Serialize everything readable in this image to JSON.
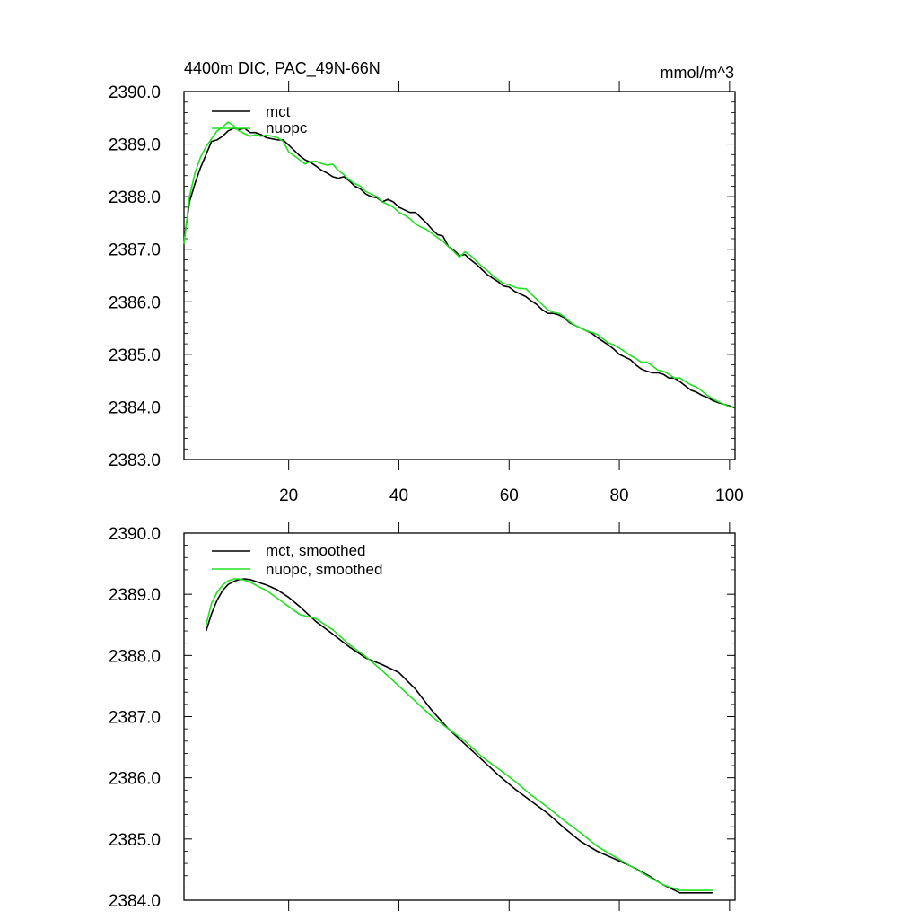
{
  "chart_data": [
    {
      "type": "line",
      "title": "4400m DIC, PAC_49N-66N",
      "units": "mmol/m^3",
      "xlim": [
        1,
        101
      ],
      "ylim": [
        2383.0,
        2390.0
      ],
      "xticks": [
        20,
        40,
        60,
        80,
        100
      ],
      "yticks": [
        "2383.0",
        "2384.0",
        "2385.0",
        "2386.0",
        "2387.0",
        "2388.0",
        "2389.0",
        "2390.0"
      ],
      "legend_position": "top-left",
      "grid": false,
      "series": [
        {
          "name": "mct",
          "color": "#000000",
          "x": [
            1,
            2,
            3,
            4,
            5,
            6,
            7,
            8,
            9,
            10,
            11,
            12,
            13,
            14,
            15,
            16,
            17,
            18,
            19,
            20,
            21,
            22,
            23,
            24,
            25,
            26,
            27,
            28,
            29,
            30,
            31,
            32,
            33,
            34,
            35,
            36,
            37,
            38,
            39,
            40,
            41,
            42,
            43,
            44,
            45,
            46,
            47,
            48,
            49,
            50,
            51,
            52,
            53,
            54,
            55,
            56,
            57,
            58,
            59,
            60,
            61,
            62,
            63,
            64,
            65,
            66,
            67,
            68,
            69,
            70,
            71,
            72,
            73,
            74,
            75,
            76,
            77,
            78,
            79,
            80,
            81,
            82,
            83,
            84,
            85,
            86,
            87,
            88,
            89,
            90,
            91,
            92,
            93,
            94,
            95,
            96,
            97,
            98,
            99,
            100,
            101
          ],
          "values": [
            2387.15,
            2387.9,
            2388.25,
            2388.55,
            2388.8,
            2389.05,
            2389.08,
            2389.15,
            2389.25,
            2389.3,
            2389.28,
            2389.3,
            2389.22,
            2389.22,
            2389.18,
            2389.12,
            2389.1,
            2389.08,
            2389.08,
            2388.98,
            2388.88,
            2388.78,
            2388.7,
            2388.65,
            2388.58,
            2388.5,
            2388.45,
            2388.38,
            2388.35,
            2388.38,
            2388.3,
            2388.2,
            2388.15,
            2388.05,
            2388.0,
            2387.98,
            2387.9,
            2387.95,
            2387.9,
            2387.8,
            2387.75,
            2387.7,
            2387.7,
            2387.6,
            2387.5,
            2387.38,
            2387.28,
            2387.25,
            2387.05,
            2386.98,
            2386.88,
            2386.9,
            2386.8,
            2386.72,
            2386.62,
            2386.52,
            2386.45,
            2386.38,
            2386.3,
            2386.28,
            2386.2,
            2386.15,
            2386.1,
            2386.02,
            2385.95,
            2385.85,
            2385.78,
            2385.78,
            2385.75,
            2385.7,
            2385.6,
            2385.55,
            2385.5,
            2385.45,
            2385.4,
            2385.32,
            2385.25,
            2385.18,
            2385.1,
            2385.0,
            2384.95,
            2384.9,
            2384.8,
            2384.72,
            2384.68,
            2384.65,
            2384.65,
            2384.62,
            2384.55,
            2384.55,
            2384.48,
            2384.4,
            2384.32,
            2384.28,
            2384.22,
            2384.18,
            2384.12,
            2384.08,
            2384.05,
            2384.02,
            2383.98
          ]
        },
        {
          "name": "nuopc",
          "color": "#22e022",
          "x": [
            1,
            2,
            3,
            4,
            5,
            6,
            7,
            8,
            9,
            10,
            11,
            12,
            13,
            14,
            15,
            16,
            17,
            18,
            19,
            20,
            21,
            22,
            23,
            24,
            25,
            26,
            27,
            28,
            29,
            30,
            31,
            32,
            33,
            34,
            35,
            36,
            37,
            38,
            39,
            40,
            41,
            42,
            43,
            44,
            45,
            46,
            47,
            48,
            49,
            50,
            51,
            52,
            53,
            54,
            55,
            56,
            57,
            58,
            59,
            60,
            61,
            62,
            63,
            64,
            65,
            66,
            67,
            68,
            69,
            70,
            71,
            72,
            73,
            74,
            75,
            76,
            77,
            78,
            79,
            80,
            81,
            82,
            83,
            84,
            85,
            86,
            87,
            88,
            89,
            90,
            91,
            92,
            93,
            94,
            95,
            96,
            97,
            98,
            99,
            100,
            101
          ],
          "values": [
            2387.1,
            2388.0,
            2388.45,
            2388.75,
            2388.95,
            2389.1,
            2389.25,
            2389.32,
            2389.42,
            2389.35,
            2389.25,
            2389.2,
            2389.15,
            2389.18,
            2389.15,
            2389.17,
            2389.15,
            2389.12,
            2389.05,
            2388.85,
            2388.78,
            2388.7,
            2388.62,
            2388.67,
            2388.67,
            2388.63,
            2388.6,
            2388.62,
            2388.5,
            2388.42,
            2388.32,
            2388.25,
            2388.2,
            2388.1,
            2388.05,
            2388.0,
            2387.9,
            2387.85,
            2387.8,
            2387.7,
            2387.65,
            2387.58,
            2387.48,
            2387.42,
            2387.38,
            2387.3,
            2387.22,
            2387.15,
            2387.05,
            2386.95,
            2386.85,
            2386.95,
            2386.88,
            2386.78,
            2386.68,
            2386.6,
            2386.5,
            2386.42,
            2386.35,
            2386.32,
            2386.28,
            2386.25,
            2386.25,
            2386.15,
            2386.05,
            2385.95,
            2385.85,
            2385.8,
            2385.78,
            2385.72,
            2385.62,
            2385.55,
            2385.5,
            2385.45,
            2385.42,
            2385.38,
            2385.3,
            2385.22,
            2385.18,
            2385.12,
            2385.05,
            2384.98,
            2384.92,
            2384.85,
            2384.85,
            2384.78,
            2384.7,
            2384.68,
            2384.62,
            2384.55,
            2384.55,
            2384.48,
            2384.42,
            2384.38,
            2384.3,
            2384.22,
            2384.15,
            2384.1,
            2384.05,
            2384.0,
            2384.0
          ]
        }
      ]
    },
    {
      "type": "line",
      "xlim": [
        1,
        101
      ],
      "ylim": [
        2384.0,
        2390.0
      ],
      "yticks": [
        "2384.0",
        "2385.0",
        "2386.0",
        "2387.0",
        "2388.0",
        "2389.0",
        "2390.0"
      ],
      "legend_position": "top-left",
      "grid": false,
      "series": [
        {
          "name": "mct, smoothed",
          "color": "#000000",
          "x": [
            5,
            6,
            7,
            8,
            9,
            10,
            11,
            12,
            13,
            14,
            16,
            18,
            20,
            22,
            25,
            28,
            31,
            34,
            37,
            40,
            43,
            46,
            49,
            52,
            55,
            58,
            61,
            64,
            67,
            70,
            73,
            76,
            79,
            82,
            85,
            88,
            91,
            94,
            97
          ],
          "values": [
            2388.4,
            2388.68,
            2388.9,
            2389.06,
            2389.16,
            2389.21,
            2389.24,
            2389.25,
            2389.24,
            2389.21,
            2389.15,
            2389.07,
            2388.95,
            2388.8,
            2388.55,
            2388.35,
            2388.14,
            2387.96,
            2387.85,
            2387.72,
            2387.45,
            2387.1,
            2386.8,
            2386.55,
            2386.3,
            2386.05,
            2385.82,
            2385.62,
            2385.42,
            2385.18,
            2384.96,
            2384.8,
            2384.68,
            2384.56,
            2384.42,
            2384.25,
            2384.12,
            2384.12,
            2384.12
          ]
        },
        {
          "name": "nuopc, smoothed",
          "color": "#22e022",
          "x": [
            5,
            6,
            7,
            8,
            9,
            10,
            11,
            12,
            13,
            14,
            16,
            18,
            20,
            22,
            25,
            28,
            31,
            34,
            37,
            40,
            43,
            46,
            49,
            52,
            55,
            58,
            61,
            64,
            67,
            70,
            73,
            76,
            79,
            82,
            85,
            88,
            91,
            94,
            97
          ],
          "values": [
            2388.5,
            2388.85,
            2389.03,
            2389.15,
            2389.22,
            2389.25,
            2389.25,
            2389.23,
            2389.2,
            2389.15,
            2389.06,
            2388.93,
            2388.8,
            2388.67,
            2388.6,
            2388.42,
            2388.18,
            2387.98,
            2387.75,
            2387.5,
            2387.25,
            2387.0,
            2386.8,
            2386.6,
            2386.35,
            2386.15,
            2385.95,
            2385.72,
            2385.52,
            2385.3,
            2385.1,
            2384.88,
            2384.72,
            2384.56,
            2384.4,
            2384.25,
            2384.16,
            2384.16,
            2384.16
          ]
        }
      ]
    }
  ]
}
